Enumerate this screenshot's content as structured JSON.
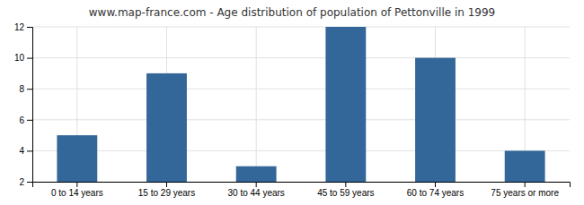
{
  "chart_data": {
    "type": "bar",
    "title": "www.map-france.com - Age distribution of population of Pettonville in 1999",
    "categories": [
      "0 to 14 years",
      "15 to 29 years",
      "30 to 44 years",
      "45 to 59 years",
      "60 to 74 years",
      "75 years or more"
    ],
    "values": [
      5,
      9,
      3,
      12,
      10,
      4
    ],
    "color": "#336699",
    "ylim": [
      2,
      12
    ],
    "yticks": [
      2,
      4,
      6,
      8,
      10,
      12
    ],
    "grid": true
  }
}
